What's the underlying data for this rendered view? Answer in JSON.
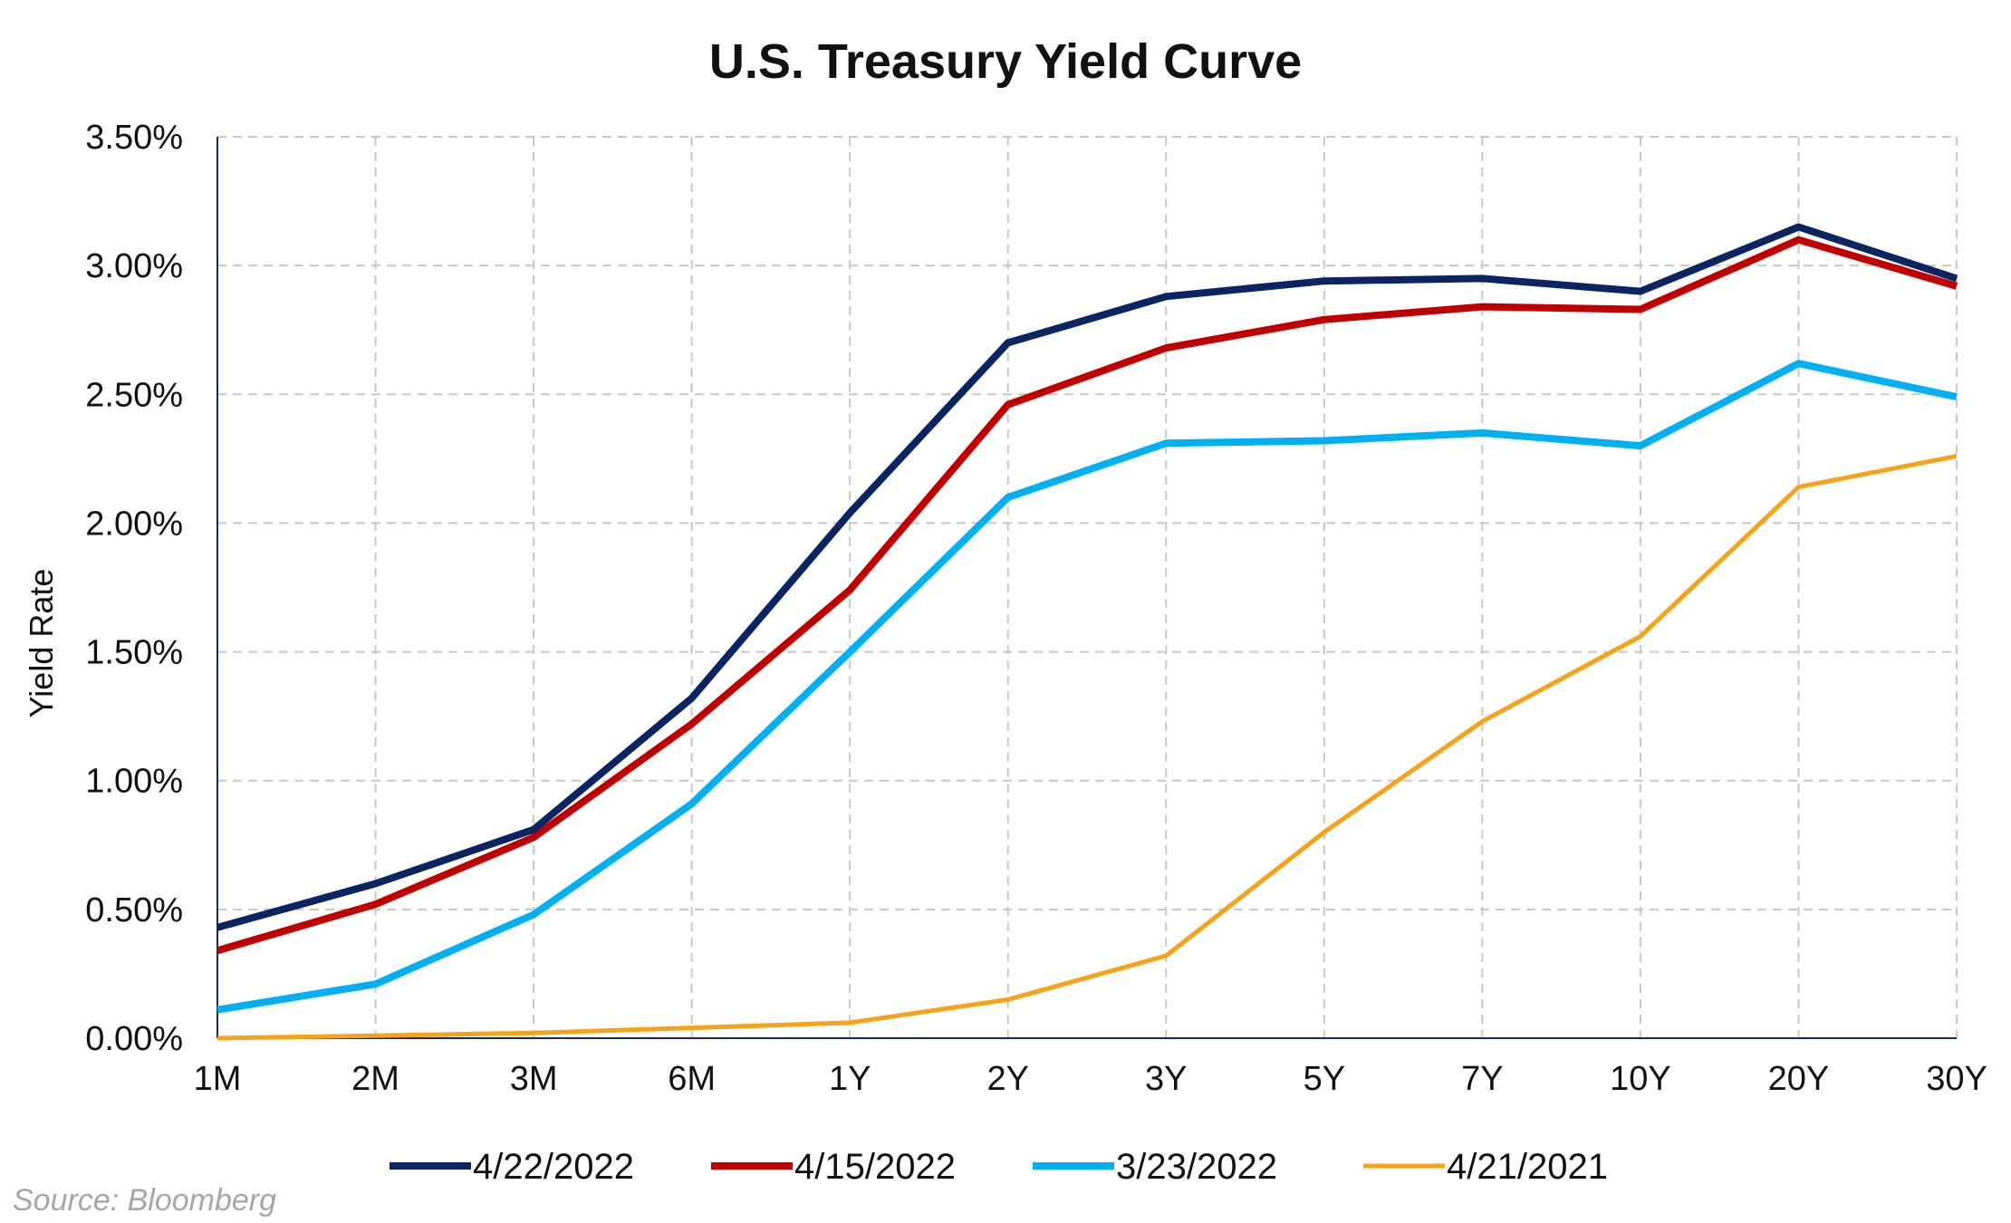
{
  "chart_data": {
    "type": "line",
    "title": "U.S. Treasury Yield Curve",
    "xlabel": "",
    "ylabel": "Yield Rate",
    "categories": [
      "1M",
      "2M",
      "3M",
      "6M",
      "1Y",
      "2Y",
      "3Y",
      "5Y",
      "7Y",
      "10Y",
      "20Y",
      "30Y"
    ],
    "ylim": [
      0,
      3.5
    ],
    "y_ticks": [
      0,
      0.5,
      1.0,
      1.5,
      2.0,
      2.5,
      3.0,
      3.5
    ],
    "y_tick_labels": [
      "0.00%",
      "0.50%",
      "1.00%",
      "1.50%",
      "2.00%",
      "2.50%",
      "3.00%",
      "3.50%"
    ],
    "grid": true,
    "legend_position": "bottom",
    "series": [
      {
        "name": "4/22/2022",
        "color": "#0c2461",
        "values": [
          0.43,
          0.6,
          0.81,
          1.32,
          2.04,
          2.7,
          2.88,
          2.94,
          2.95,
          2.9,
          3.15,
          2.95
        ]
      },
      {
        "name": "4/15/2022",
        "color": "#c00000",
        "values": [
          0.34,
          0.52,
          0.78,
          1.22,
          1.74,
          2.46,
          2.68,
          2.79,
          2.84,
          2.83,
          3.1,
          2.92
        ]
      },
      {
        "name": "3/23/2022",
        "color": "#00b0f0",
        "values": [
          0.11,
          0.21,
          0.48,
          0.91,
          1.5,
          2.1,
          2.31,
          2.32,
          2.35,
          2.3,
          2.62,
          2.49
        ]
      },
      {
        "name": "4/21/2021",
        "color": "#f7a21b",
        "values": [
          0.0,
          0.01,
          0.02,
          0.04,
          0.06,
          0.15,
          0.32,
          0.8,
          1.23,
          1.56,
          2.14,
          2.26
        ]
      }
    ],
    "source": "Source: Bloomberg"
  }
}
